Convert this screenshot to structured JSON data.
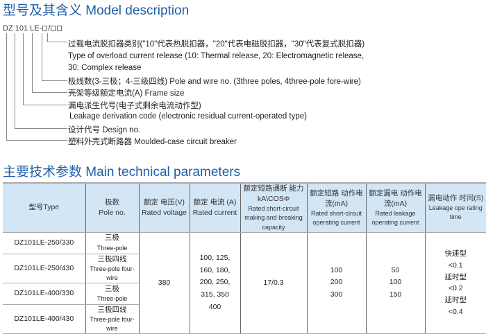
{
  "model": {
    "title": "型号及其含义  Model description",
    "code": [
      "DZ",
      "101",
      "LE-",
      "/"
    ],
    "items": [
      "过载电流脱扣器类别(\"10\"代表热脱扣器，\"20\"代表电磁脱扣器，\"30\"代表复式脱扣器)",
      "Type of overload current release (10: Thermal release, 20: Electromagnetic release,",
      "30: Complex release",
      "极线数(3-三极；4-三级四线)  Pole and wire no. (3three poles, 4three-pole fore-wire)",
      "壳架等级额定电流(A)  Frame size",
      "漏电派生代号(电子式剩余电流动作型)",
      "Leakage derivation code (electronic residual current-operated type)",
      "设计代号 Design no.",
      "塑料外壳式断路器  Moulded-case circuit breaker"
    ]
  },
  "params": {
    "title": "主要技术参数  Main technical parameters",
    "headers": [
      {
        "cn": "型号Type",
        "en": ""
      },
      {
        "cn": "极数",
        "en": "Pole no."
      },
      {
        "cn": "额定 电压(V)",
        "en": "Rated voltage"
      },
      {
        "cn": "额定 电流 (A)",
        "en": "Rated current"
      },
      {
        "cn": "额定短路通断 能力kA\\COSΦ",
        "en": "Rated short-circuit making  and breaking capacity"
      },
      {
        "cn": "额定短路 动作电流(mA)",
        "en": "Rated short-circuit operating current"
      },
      {
        "cn": "额定漏电 动作电流(mA)",
        "en": "Rated leakage operating current"
      },
      {
        "cn": "漏电动作 时间(S)",
        "en": "Leakage ope rating time"
      }
    ],
    "rows": [
      {
        "type": "DZ101LE-250/330",
        "pole_cn": "三极",
        "pole_en": "Three-pole"
      },
      {
        "type": "DZ101LE-250/430",
        "pole_cn": "三极四线",
        "pole_en": "Three-pole four-wire"
      },
      {
        "type": "DZ101LE-400/330",
        "pole_cn": "三极",
        "pole_en": "Three-pole"
      },
      {
        "type": "DZ101LE-400/430",
        "pole_cn": "三极四线",
        "pole_en": "Three-pole four-wire"
      }
    ],
    "voltage": "380",
    "current": [
      "100, 125,",
      "160, 180,",
      "200, 250,",
      "315, 350",
      "400"
    ],
    "capacity": "17/0.3",
    "sc_current": [
      "100",
      "200",
      "300"
    ],
    "leak_current": [
      "50",
      "100",
      "150"
    ],
    "time": [
      "快速型",
      "<0.1",
      "延时型",
      "<0.2",
      "延时型",
      "<0.4"
    ]
  }
}
